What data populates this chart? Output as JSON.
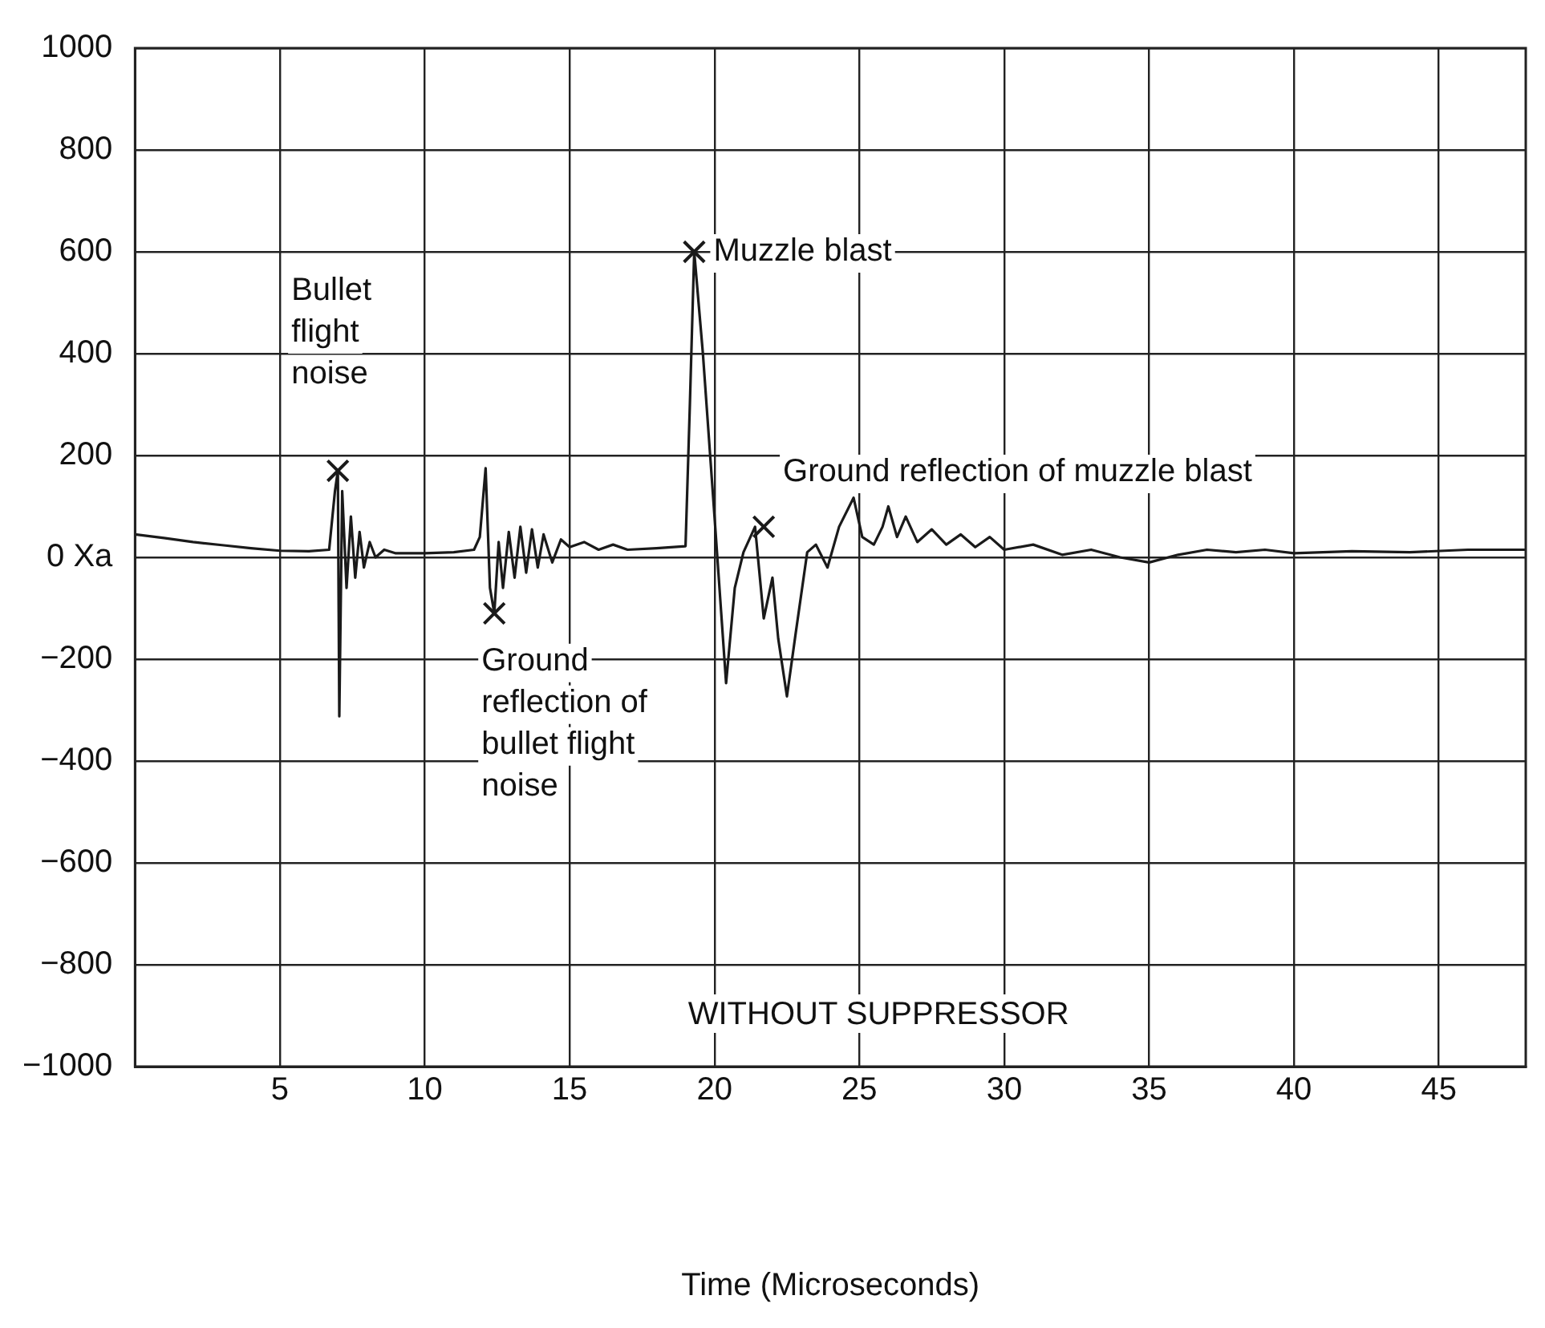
{
  "chart_data": {
    "type": "line",
    "xlabel": "Time (Microseconds)",
    "xlim": [
      0,
      48
    ],
    "xticks": [
      5,
      10,
      15,
      20,
      25,
      30,
      35,
      40,
      45
    ],
    "ylim": [
      -1000,
      1000
    ],
    "yticks": [
      -1000,
      -800,
      -600,
      -400,
      -200,
      {
        "value": 0,
        "label": "0 Xa"
      },
      200,
      400,
      600,
      800,
      1000
    ],
    "grid": true,
    "legend": false,
    "series": [
      {
        "color": "#1a1a1a",
        "marker": "none",
        "x": [
          0,
          1,
          2,
          3,
          4,
          5,
          6,
          6.7,
          6.9,
          7.0,
          7.05,
          7.15,
          7.3,
          7.45,
          7.6,
          7.75,
          7.9,
          8.1,
          8.3,
          8.6,
          9,
          10,
          11,
          11.7,
          11.9,
          12.1,
          12.25,
          12.4,
          12.55,
          12.7,
          12.9,
          13.1,
          13.3,
          13.5,
          13.7,
          13.9,
          14.1,
          14.4,
          14.7,
          15,
          15.5,
          16,
          16.5,
          17,
          18,
          19,
          19.15,
          19.3,
          19.6,
          20,
          20.4,
          20.7,
          21,
          21.4,
          21.7,
          22,
          22.2,
          22.5,
          22.8,
          23.2,
          23.5,
          23.9,
          24.3,
          24.8,
          25.1,
          25.5,
          25.8,
          26,
          26.3,
          26.6,
          27,
          27.5,
          28,
          28.5,
          29,
          29.5,
          30,
          31,
          32,
          33,
          34,
          35,
          36,
          37,
          38,
          39,
          40,
          42,
          44,
          46,
          48
        ],
        "values": [
          45,
          38,
          30,
          24,
          18,
          13,
          12,
          15,
          130,
          170,
          -312,
          130,
          -60,
          80,
          -40,
          50,
          -20,
          30,
          0,
          15,
          8,
          8,
          10,
          15,
          40,
          175,
          -60,
          -110,
          30,
          -60,
          50,
          -40,
          60,
          -30,
          55,
          -20,
          45,
          -10,
          35,
          20,
          30,
          15,
          25,
          15,
          18,
          22,
          300,
          600,
          400,
          80,
          -247,
          -60,
          10,
          60,
          -120,
          -40,
          -160,
          -273,
          -150,
          10,
          25,
          -20,
          60,
          117,
          40,
          25,
          60,
          100,
          40,
          80,
          30,
          55,
          25,
          45,
          20,
          40,
          15,
          25,
          5,
          15,
          0,
          -10,
          5,
          15,
          10,
          15,
          8,
          12,
          10,
          15,
          15
        ]
      },
      {
        "type": "scatter",
        "color": "#1a1a1a",
        "marker": "cross",
        "x": [
          7,
          12.4,
          19.3,
          21.7
        ],
        "values": [
          170,
          -110,
          600,
          60
        ]
      }
    ],
    "annotations": [
      {
        "text": "Bullet flight noise",
        "x": 7,
        "y": 170
      },
      {
        "text": "Ground reflection of bullet flight noise",
        "x": 12.4,
        "y": -110
      },
      {
        "text": "Muzzle blast",
        "x": 19.3,
        "y": 600
      },
      {
        "text": "Ground reflection of muzzle blast",
        "x": 21.7,
        "y": 60
      },
      "WITHOUT SUPPRESSOR"
    ]
  }
}
